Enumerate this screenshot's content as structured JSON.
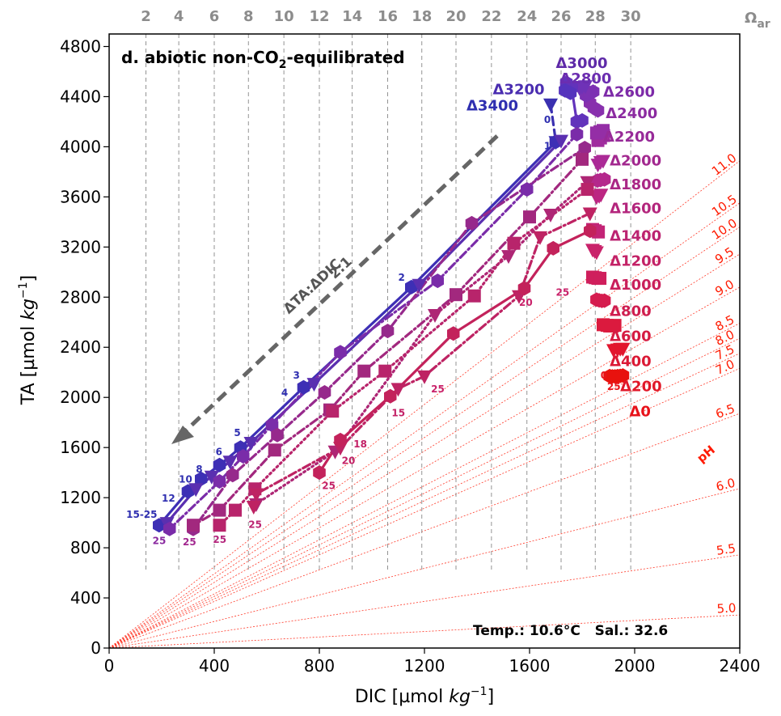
{
  "chart_data": {
    "type": "line",
    "title": "d. abiotic non-CO2-equilibrated",
    "title_main": "d. abiotic non-CO",
    "title_sub": "2",
    "title_tail": "-equilibrated",
    "xlabel": "DIC [µmol kg⁻¹]",
    "ylabel": "TA [µmol kg⁻¹]",
    "xlabel_parts": [
      "DIC [µmol ",
      "kg",
      "−1",
      "]"
    ],
    "ylabel_parts": [
      "TA [µmol ",
      "kg",
      "−1",
      "]"
    ],
    "xlim": [
      0,
      2400
    ],
    "ylim": [
      0,
      4900
    ],
    "x_ticks": [
      0,
      400,
      800,
      1200,
      1600,
      2000,
      2400
    ],
    "y_ticks": [
      0,
      400,
      800,
      1200,
      1600,
      2000,
      2400,
      2800,
      3200,
      3600,
      4000,
      4400,
      4800
    ],
    "omega_label": "Ω",
    "omega_sub": "ar",
    "omega_isolines": [
      {
        "label": "2",
        "dic": 140
      },
      {
        "label": "4",
        "dic": 265
      },
      {
        "label": "6",
        "dic": 400
      },
      {
        "label": "8",
        "dic": 530
      },
      {
        "label": "10",
        "dic": 665
      },
      {
        "label": "12",
        "dic": 800
      },
      {
        "label": "14",
        "dic": 925
      },
      {
        "label": "16",
        "dic": 1060
      },
      {
        "label": "18",
        "dic": 1190
      },
      {
        "label": "20",
        "dic": 1320
      },
      {
        "label": "22",
        "dic": 1455
      },
      {
        "label": "24",
        "dic": 1590
      },
      {
        "label": "26",
        "dic": 1720
      },
      {
        "label": "28",
        "dic": 1850
      },
      {
        "label": "30",
        "dic": 1985
      }
    ],
    "ph_isolines": [
      {
        "label": "11.0",
        "slope": 1.62
      },
      {
        "label": "10.5",
        "slope": 1.48
      },
      {
        "label": "10.0",
        "slope": 1.4
      },
      {
        "label": "9.5",
        "slope": 1.31
      },
      {
        "label": "9.0",
        "slope": 1.2
      },
      {
        "label": "8.5",
        "slope": 1.08
      },
      {
        "label": "8.0",
        "slope": 1.03
      },
      {
        "label": "7.5",
        "slope": 0.98
      },
      {
        "label": "7.0",
        "slope": 0.93
      },
      {
        "label": "6.5",
        "slope": 0.78
      },
      {
        "label": "6.0",
        "slope": 0.53
      },
      {
        "label": "5.5",
        "slope": 0.31
      },
      {
        "label": "5.0",
        "slope": 0.11
      }
    ],
    "ph_axis_label": "pH",
    "arrow_label_1": "ΔTA:ΔDIC",
    "arrow_label_2": "2:1",
    "env_text": "Temp.: 10.6°C   Sal.: 32.6",
    "series": [
      {
        "name": "Δ0",
        "color": "#e8120e",
        "marker": "hexagon",
        "dash": "solid",
        "points": [
          [
            1955,
            2175
          ],
          [
            1945,
            2172
          ],
          [
            1935,
            2170
          ],
          [
            1925,
            2168
          ],
          [
            1915,
            2168
          ],
          [
            1905,
            2170
          ]
        ]
      },
      {
        "name": "Δ200",
        "color": "#e2162e",
        "marker": "triangle",
        "dash": "dot",
        "points": [
          [
            1920,
            2380
          ],
          [
            1935,
            2385
          ],
          [
            1945,
            2390
          ],
          [
            1955,
            2390
          ]
        ]
      },
      {
        "name": "Δ400",
        "color": "#db1a3e",
        "marker": "square",
        "dash": "dot",
        "points": [
          [
            1880,
            2580
          ],
          [
            1895,
            2575
          ],
          [
            1905,
            2570
          ],
          [
            1915,
            2570
          ],
          [
            1925,
            2575
          ]
        ]
      },
      {
        "name": "Δ600",
        "color": "#d51c4e",
        "marker": "hexagon",
        "dash": "dot",
        "points": [
          [
            1855,
            2780
          ],
          [
            1865,
            2775
          ],
          [
            1875,
            2770
          ],
          [
            1885,
            2772
          ]
        ]
      },
      {
        "name": "Δ800",
        "color": "#cf1f5c",
        "marker": "square",
        "dash": "dot",
        "points": [
          [
            1840,
            2960
          ],
          [
            1850,
            2955
          ],
          [
            1860,
            2950
          ],
          [
            1868,
            2950
          ]
        ]
      },
      {
        "name": "Δ1000",
        "color": "#c9226a",
        "marker": "triangle",
        "dash": "dashdot",
        "points": [
          [
            1840,
            3180
          ],
          [
            1848,
            3170
          ],
          [
            1855,
            3160
          ]
        ]
      },
      {
        "name": "Δ1200",
        "color": "#c32476",
        "marker": "square",
        "dash": "dashdot",
        "points": [
          [
            1840,
            3340
          ],
          [
            1850,
            3330
          ],
          [
            1862,
            3320
          ]
        ]
      },
      {
        "name": "Δ1400",
        "color": "#bc2682",
        "marker": "triangle",
        "dash": "dot",
        "points": [
          [
            1855,
            3600
          ],
          [
            1865,
            3610
          ],
          [
            1872,
            3620
          ]
        ]
      },
      {
        "name": "Δ1600",
        "color": "#b4288c",
        "marker": "hexagon",
        "dash": "dot",
        "points": [
          [
            1858,
            3730
          ],
          [
            1870,
            3735
          ],
          [
            1885,
            3740
          ]
        ]
      },
      {
        "name": "Δ1800",
        "color": "#ab2a96",
        "marker": "triangle",
        "dash": "dot",
        "points": [
          [
            1860,
            3860
          ],
          [
            1870,
            3880
          ],
          [
            1880,
            3890
          ]
        ]
      },
      {
        "name": "Δ2000",
        "color": "#a02c9e",
        "marker": "square",
        "dash": "dot",
        "points": [
          [
            1860,
            4050
          ],
          [
            1870,
            4070
          ],
          [
            1882,
            4090
          ]
        ]
      },
      {
        "name": "Δ2200",
        "color": "#942ea6",
        "marker": "square",
        "dash": "dashdot",
        "points": [
          [
            1855,
            4110
          ],
          [
            1868,
            4120
          ],
          [
            1880,
            4130
          ]
        ]
      },
      {
        "name": "Δ2400",
        "color": "#8830ad",
        "marker": "hexagon",
        "dash": "dot",
        "points": [
          [
            1830,
            4350
          ],
          [
            1845,
            4310
          ],
          [
            1860,
            4290
          ]
        ]
      },
      {
        "name": "Δ2600",
        "color": "#7c31b3",
        "marker": "hexagon",
        "dash": "dot",
        "points": [
          [
            1815,
            4410
          ],
          [
            1828,
            4430
          ],
          [
            1842,
            4440
          ]
        ]
      },
      {
        "name": "Δ2800",
        "color": "#6f32b7",
        "marker": "triangle",
        "dash": "dot",
        "points": [
          [
            1790,
            4470
          ],
          [
            1800,
            4480
          ],
          [
            1812,
            4485
          ]
        ]
      },
      {
        "name": "Δ3000",
        "color": "#6233bb",
        "marker": "hexagon",
        "dash": "solid",
        "points": [
          [
            1740,
            4510
          ],
          [
            1760,
            4470
          ],
          [
            1780,
            4200
          ],
          [
            1800,
            4210
          ]
        ]
      },
      {
        "name": "Δ3200",
        "color": "#5534bd",
        "marker": "hexagon",
        "dash": "solid",
        "points": [
          [
            1735,
            4450
          ],
          [
            1755,
            4430
          ]
        ]
      },
      {
        "name": "Δ3400",
        "color": "#3a30b0",
        "marker": "triangle",
        "dash": "dashed",
        "points": [
          [
            1680,
            4340
          ],
          [
            1700,
            4040
          ]
        ]
      },
      {
        "name": "trajectory-blue",
        "color": "#3d2fb5",
        "marker": "hexagon",
        "dash": "solid",
        "points": [
          [
            1700,
            4040
          ],
          [
            1150,
            2880
          ],
          [
            740,
            2080
          ],
          [
            500,
            1600
          ],
          [
            420,
            1460
          ],
          [
            350,
            1350
          ],
          [
            300,
            1250
          ],
          [
            190,
            980
          ]
        ]
      },
      {
        "name": "trajectory-indigo",
        "color": "#5a2fb0",
        "marker": "triangle",
        "dash": "solid",
        "points": [
          [
            1720,
            4050
          ],
          [
            1180,
            2900
          ],
          [
            780,
            2110
          ],
          [
            540,
            1640
          ],
          [
            460,
            1490
          ],
          [
            390,
            1370
          ],
          [
            330,
            1270
          ],
          [
            220,
            1000
          ]
        ]
      },
      {
        "name": "trajectory-violet",
        "color": "#7a2ca9",
        "marker": "hexagon",
        "dash": "dashdot",
        "points": [
          [
            1780,
            4100
          ],
          [
            1590,
            3660
          ],
          [
            1250,
            2930
          ],
          [
            880,
            2360
          ],
          [
            620,
            1780
          ],
          [
            510,
            1530
          ],
          [
            420,
            1330
          ],
          [
            230,
            950
          ]
        ]
      },
      {
        "name": "trajectory-purple",
        "color": "#96298c",
        "marker": "hexagon",
        "dash": "dashdot",
        "points": [
          [
            1810,
            3990
          ],
          [
            1380,
            3390
          ],
          [
            1060,
            2530
          ],
          [
            820,
            2040
          ],
          [
            640,
            1700
          ],
          [
            470,
            1380
          ],
          [
            320,
            950
          ]
        ]
      },
      {
        "name": "trajectory-plum",
        "color": "#a2287e",
        "marker": "square",
        "dash": "dashdot",
        "points": [
          [
            1800,
            3900
          ],
          [
            1600,
            3440
          ],
          [
            1320,
            2820
          ],
          [
            970,
            2210
          ],
          [
            840,
            1900
          ],
          [
            630,
            1580
          ],
          [
            420,
            1100
          ],
          [
            320,
            980
          ]
        ]
      },
      {
        "name": "trajectory-magenta",
        "color": "#ae2675",
        "marker": "triangle",
        "dash": "dot",
        "points": [
          [
            1820,
            3720
          ],
          [
            1680,
            3460
          ],
          [
            1520,
            3130
          ],
          [
            1240,
            2660
          ],
          [
            860,
            1570
          ],
          [
            560,
            1150
          ]
        ]
      },
      {
        "name": "trajectory-rose",
        "color": "#b8246b",
        "marker": "square",
        "dash": "dot",
        "points": [
          [
            1820,
            3660
          ],
          [
            1540,
            3230
          ],
          [
            1390,
            2810
          ],
          [
            1050,
            2210
          ],
          [
            850,
            1890
          ],
          [
            555,
            1270
          ],
          [
            480,
            1100
          ],
          [
            420,
            980
          ]
        ]
      },
      {
        "name": "trajectory-crimson",
        "color": "#be2363",
        "marker": "triangle",
        "dash": "dashdot",
        "points": [
          [
            1830,
            3470
          ],
          [
            1640,
            3280
          ],
          [
            1560,
            2810
          ],
          [
            1200,
            2170
          ],
          [
            1100,
            2070
          ],
          [
            880,
            1600
          ],
          [
            560,
            1230
          ],
          [
            550,
            1130
          ]
        ]
      },
      {
        "name": "trajectory-ruby",
        "color": "#c3225b",
        "marker": "hexagon",
        "dash": "solid",
        "points": [
          [
            1830,
            3330
          ],
          [
            1690,
            3190
          ],
          [
            1580,
            2870
          ],
          [
            1310,
            2510
          ],
          [
            1070,
            2010
          ],
          [
            880,
            1660
          ],
          [
            800,
            1400
          ]
        ]
      }
    ],
    "delta_labels": [
      {
        "text": "Δ3000",
        "dic": 1700,
        "ta": 4630,
        "color": "#5e2aa8"
      },
      {
        "text": "Δ3200",
        "dic": 1460,
        "ta": 4420,
        "color": "#4a2db0"
      },
      {
        "text": "Δ2800",
        "dic": 1715,
        "ta": 4505,
        "color": "#6b2db0"
      },
      {
        "text": "Δ2600",
        "dic": 1880,
        "ta": 4400,
        "color": "#7d2aa8"
      },
      {
        "text": "Δ3400",
        "dic": 1360,
        "ta": 4290,
        "color": "#2f2fb0"
      },
      {
        "text": "Δ2400",
        "dic": 1890,
        "ta": 4230,
        "color": "#8b2aa0"
      },
      {
        "text": "Δ2200",
        "dic": 1880,
        "ta": 4040,
        "color": "#972a98"
      },
      {
        "text": "Δ2000",
        "dic": 1905,
        "ta": 3850,
        "color": "#a2288f"
      },
      {
        "text": "Δ1800",
        "dic": 1905,
        "ta": 3660,
        "color": "#aa2786"
      },
      {
        "text": "Δ1600",
        "dic": 1905,
        "ta": 3470,
        "color": "#b3257c"
      },
      {
        "text": "Δ1400",
        "dic": 1905,
        "ta": 3250,
        "color": "#bb2371"
      },
      {
        "text": "Δ1200",
        "dic": 1905,
        "ta": 3050,
        "color": "#c32166"
      },
      {
        "text": "Δ1000",
        "dic": 1905,
        "ta": 2860,
        "color": "#c91f5b"
      },
      {
        "text": "Δ800",
        "dic": 1905,
        "ta": 2650,
        "color": "#cf1d4f"
      },
      {
        "text": "Δ600",
        "dic": 1905,
        "ta": 2450,
        "color": "#d51b42"
      },
      {
        "text": "Δ400",
        "dic": 1905,
        "ta": 2250,
        "color": "#db1935"
      },
      {
        "text": "Δ200",
        "dic": 1945,
        "ta": 2050,
        "color": "#e11728"
      },
      {
        "text": "Δ0",
        "dic": 1980,
        "ta": 1850,
        "color": "#e8121a"
      }
    ],
    "time_labels": [
      {
        "text": "0",
        "dic": 1655,
        "ta": 4190,
        "color": "#2f2fb0"
      },
      {
        "text": "1",
        "dic": 1655,
        "ta": 3980,
        "color": "#2f2fb0"
      },
      {
        "text": "2",
        "dic": 1100,
        "ta": 2930,
        "color": "#2f2fb0"
      },
      {
        "text": "3",
        "dic": 700,
        "ta": 2150,
        "color": "#2f2fb0"
      },
      {
        "text": "4",
        "dic": 655,
        "ta": 2010,
        "color": "#2f2fb0"
      },
      {
        "text": "5",
        "dic": 475,
        "ta": 1690,
        "color": "#2f2fb0"
      },
      {
        "text": "6",
        "dic": 405,
        "ta": 1540,
        "color": "#2f2fb0"
      },
      {
        "text": "8",
        "dic": 330,
        "ta": 1400,
        "color": "#2f2fb0"
      },
      {
        "text": "10",
        "dic": 265,
        "ta": 1320,
        "color": "#2f2fb0"
      },
      {
        "text": "12",
        "dic": 200,
        "ta": 1170,
        "color": "#2f2fb0"
      },
      {
        "text": "15-25",
        "dic": 65,
        "ta": 1040,
        "color": "#2f2fb0"
      },
      {
        "text": "25",
        "dic": 165,
        "ta": 830,
        "color": "#8a2aa0"
      },
      {
        "text": "25",
        "dic": 280,
        "ta": 820,
        "color": "#a2288f"
      },
      {
        "text": "25",
        "dic": 395,
        "ta": 840,
        "color": "#b3257c"
      },
      {
        "text": "25",
        "dic": 530,
        "ta": 960,
        "color": "#bb2371"
      },
      {
        "text": "25",
        "dic": 810,
        "ta": 1270,
        "color": "#c32166"
      },
      {
        "text": "20",
        "dic": 885,
        "ta": 1470,
        "color": "#c32166"
      },
      {
        "text": "18",
        "dic": 930,
        "ta": 1600,
        "color": "#c32166"
      },
      {
        "text": "15",
        "dic": 1075,
        "ta": 1850,
        "color": "#c32166"
      },
      {
        "text": "25",
        "dic": 1225,
        "ta": 2040,
        "color": "#c9226a"
      },
      {
        "text": "20",
        "dic": 1560,
        "ta": 2730,
        "color": "#c9226a"
      },
      {
        "text": "25",
        "dic": 1700,
        "ta": 2810,
        "color": "#c9226a"
      },
      {
        "text": "0",
        "dic": 1870,
        "ta": 2150,
        "color": "#e8121a"
      },
      {
        "text": "25",
        "dic": 1895,
        "ta": 2060,
        "color": "#e8121a"
      }
    ]
  }
}
